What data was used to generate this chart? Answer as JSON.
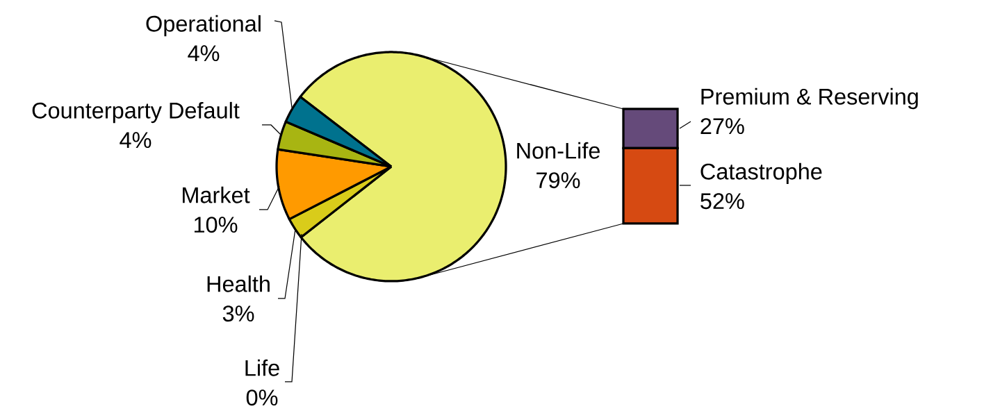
{
  "chart_data": [
    {
      "type": "pie",
      "categories": [
        "Non-Life",
        "Life",
        "Health",
        "Market",
        "Counterparty Default",
        "Operational"
      ],
      "values": [
        79,
        0,
        3,
        10,
        4,
        4
      ],
      "value_labels": [
        "79%",
        "0%",
        "3%",
        "10%",
        "4%",
        "4%"
      ],
      "colors": [
        "#eaee6f",
        "#e8d92a",
        "#d9cc1a",
        "#ff9a00",
        "#a8b512",
        "#00728e"
      ]
    },
    {
      "type": "bar",
      "stacked": true,
      "categories": [
        null
      ],
      "series": [
        {
          "name": "Catastrophe",
          "color": "#d64a12",
          "values": [
            52
          ],
          "value_labels": [
            "52%"
          ]
        },
        {
          "name": "Premium & Reserving",
          "color": "#654a7a",
          "values": [
            27
          ],
          "value_labels": [
            "27%"
          ]
        }
      ]
    }
  ]
}
